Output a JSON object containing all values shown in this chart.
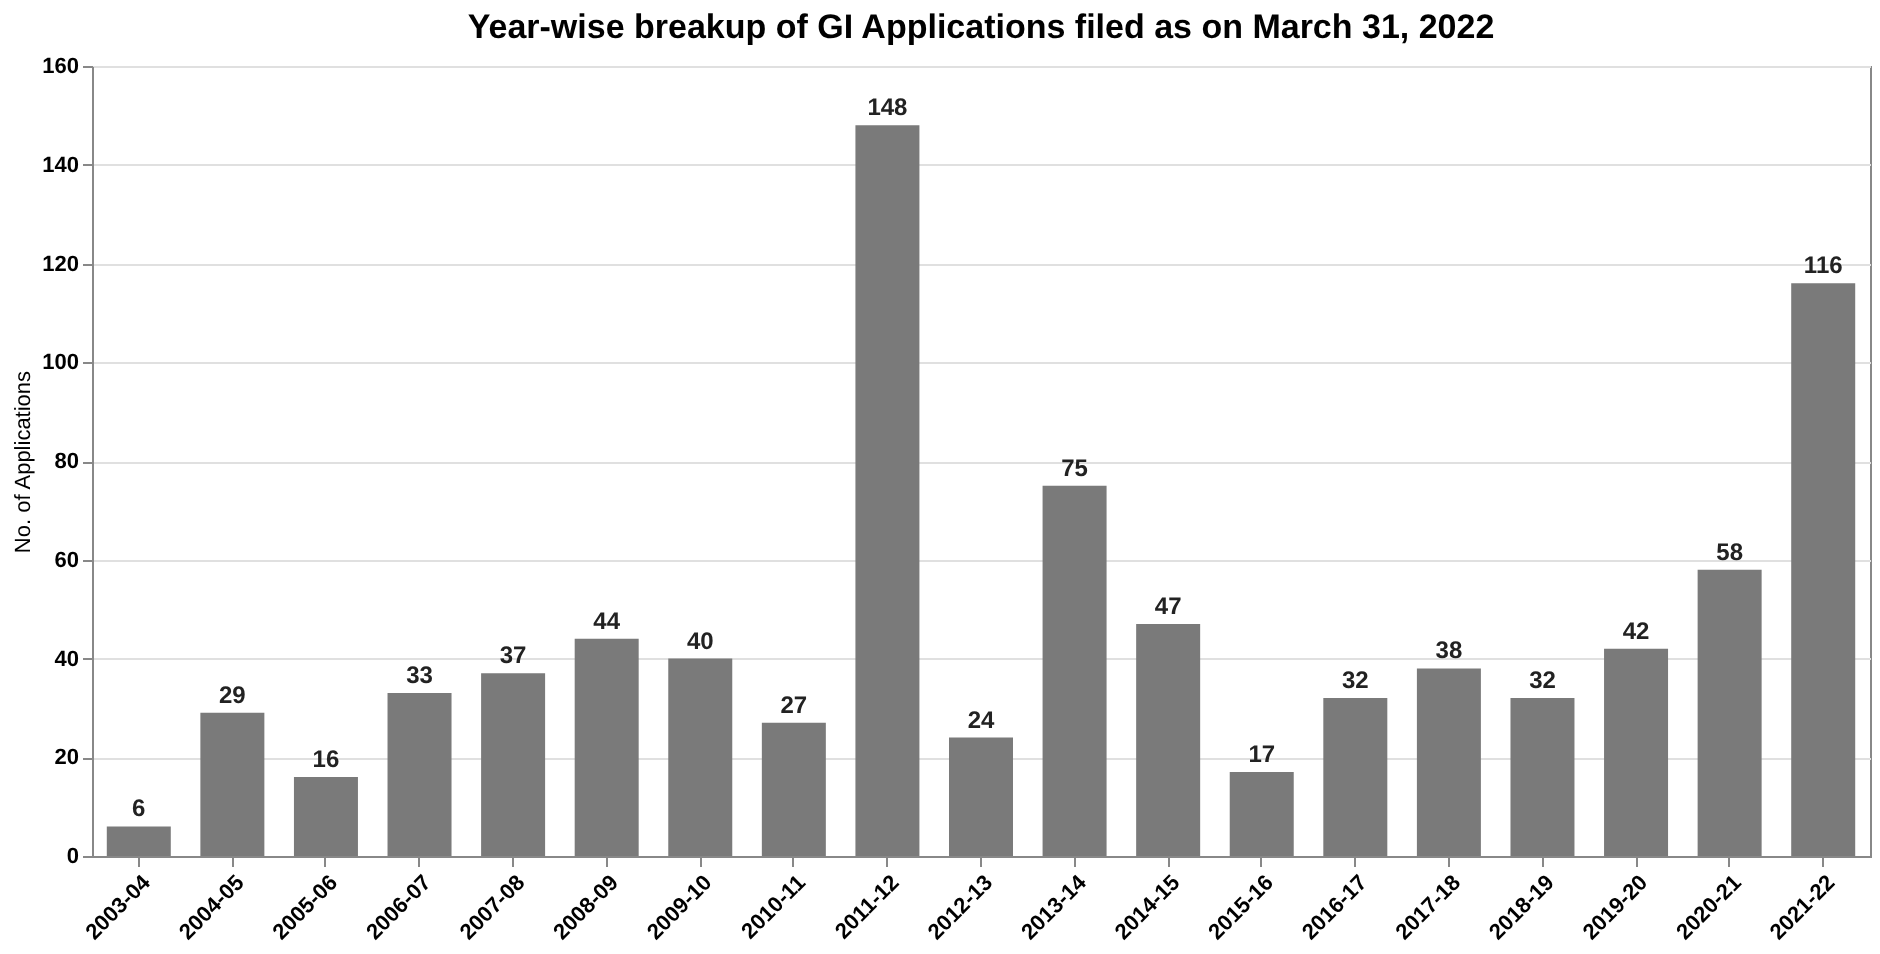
{
  "chart_data": {
    "type": "bar",
    "title": "Year-wise breakup of GI Applications filed as on March 31, 2022",
    "ylabel": "No. of Applications",
    "categories": [
      "2003-04",
      "2004-05",
      "2005-06",
      "2006-07",
      "2007-08",
      "2008-09",
      "2009-10",
      "2010-11",
      "2011-12",
      "2012-13",
      "2013-14",
      "2014-15",
      "2015-16",
      "2016-17",
      "2017-18",
      "2018-19",
      "2019-20",
      "2020-21",
      "2021-22"
    ],
    "values": [
      6,
      29,
      16,
      33,
      37,
      44,
      40,
      27,
      148,
      24,
      75,
      47,
      17,
      32,
      38,
      32,
      42,
      58,
      116
    ],
    "color": "#7a7a7a",
    "ylim": [
      0,
      160
    ],
    "yticks": [
      0,
      20,
      40,
      60,
      80,
      100,
      120,
      140,
      160
    ],
    "grid": "y",
    "data_labels": true
  }
}
